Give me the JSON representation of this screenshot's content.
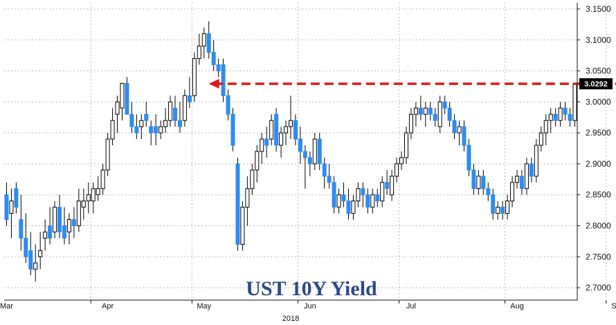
{
  "chart_data": {
    "type": "candlestick",
    "title": "UST 10Y Yield",
    "year_label": "2018",
    "last_value_label": "3.0292",
    "ylim": [
      2.68,
      3.16
    ],
    "y_ticks": [
      "3.1500",
      "3.1000",
      "3.0500",
      "3.0000",
      "2.9500",
      "2.9000",
      "2.8500",
      "2.8000",
      "2.7500",
      "2.7000"
    ],
    "y_tick_values": [
      3.15,
      3.1,
      3.05,
      3.0,
      2.95,
      2.9,
      2.85,
      2.8,
      2.75,
      2.7
    ],
    "x_ticks": [
      "Mar",
      "Apr",
      "May",
      "Jun",
      "Jul",
      "Aug",
      "Sep"
    ],
    "x_tick_index": [
      0,
      21,
      41,
      63,
      84,
      106,
      127
    ],
    "month_boundaries": [
      18,
      39,
      61,
      82,
      104,
      125
    ],
    "grid": true,
    "annotation": {
      "type": "dashed-arrow",
      "level": 3.0292,
      "from_index": 134,
      "to_index": 42,
      "color": "#e0191b"
    },
    "colors": {
      "up": "#ffffff",
      "down": "#2d8cf0",
      "outline": "#000000",
      "grid": "#b8b8b8",
      "axis": "#111111",
      "badge": "#000000"
    },
    "candles": [
      {
        "o": 2.85,
        "h": 2.87,
        "l": 2.8,
        "c": 2.81
      },
      {
        "o": 2.82,
        "h": 2.86,
        "l": 2.78,
        "c": 2.84
      },
      {
        "o": 2.86,
        "h": 2.87,
        "l": 2.82,
        "c": 2.83
      },
      {
        "o": 2.81,
        "h": 2.85,
        "l": 2.76,
        "c": 2.78
      },
      {
        "o": 2.78,
        "h": 2.82,
        "l": 2.74,
        "c": 2.75
      },
      {
        "o": 2.76,
        "h": 2.79,
        "l": 2.72,
        "c": 2.73
      },
      {
        "o": 2.73,
        "h": 2.77,
        "l": 2.71,
        "c": 2.74
      },
      {
        "o": 2.75,
        "h": 2.79,
        "l": 2.73,
        "c": 2.76
      },
      {
        "o": 2.78,
        "h": 2.81,
        "l": 2.76,
        "c": 2.79
      },
      {
        "o": 2.8,
        "h": 2.83,
        "l": 2.77,
        "c": 2.78
      },
      {
        "o": 2.79,
        "h": 2.84,
        "l": 2.78,
        "c": 2.83
      },
      {
        "o": 2.83,
        "h": 2.85,
        "l": 2.78,
        "c": 2.79
      },
      {
        "o": 2.8,
        "h": 2.83,
        "l": 2.77,
        "c": 2.78
      },
      {
        "o": 2.79,
        "h": 2.82,
        "l": 2.77,
        "c": 2.81
      },
      {
        "o": 2.81,
        "h": 2.83,
        "l": 2.78,
        "c": 2.8
      },
      {
        "o": 2.8,
        "h": 2.86,
        "l": 2.79,
        "c": 2.84
      },
      {
        "o": 2.83,
        "h": 2.86,
        "l": 2.81,
        "c": 2.84
      },
      {
        "o": 2.84,
        "h": 2.87,
        "l": 2.82,
        "c": 2.85
      },
      {
        "o": 2.84,
        "h": 2.87,
        "l": 2.82,
        "c": 2.86
      },
      {
        "o": 2.85,
        "h": 2.88,
        "l": 2.84,
        "c": 2.86
      },
      {
        "o": 2.86,
        "h": 2.9,
        "l": 2.85,
        "c": 2.89
      },
      {
        "o": 2.89,
        "h": 2.95,
        "l": 2.88,
        "c": 2.94
      },
      {
        "o": 2.94,
        "h": 2.99,
        "l": 2.93,
        "c": 2.97
      },
      {
        "o": 2.98,
        "h": 3.01,
        "l": 2.95,
        "c": 3.0
      },
      {
        "o": 2.99,
        "h": 3.03,
        "l": 2.97,
        "c": 3.03
      },
      {
        "o": 3.03,
        "h": 3.04,
        "l": 2.98,
        "c": 2.98
      },
      {
        "o": 2.98,
        "h": 3.0,
        "l": 2.95,
        "c": 2.96
      },
      {
        "o": 2.96,
        "h": 2.98,
        "l": 2.94,
        "c": 2.95
      },
      {
        "o": 2.96,
        "h": 2.98,
        "l": 2.94,
        "c": 2.97
      },
      {
        "o": 2.98,
        "h": 3.0,
        "l": 2.96,
        "c": 2.97
      },
      {
        "o": 2.96,
        "h": 2.97,
        "l": 2.93,
        "c": 2.95
      },
      {
        "o": 2.96,
        "h": 2.98,
        "l": 2.93,
        "c": 2.95
      },
      {
        "o": 2.95,
        "h": 2.97,
        "l": 2.94,
        "c": 2.96
      },
      {
        "o": 2.96,
        "h": 2.99,
        "l": 2.95,
        "c": 2.97
      },
      {
        "o": 2.97,
        "h": 3.01,
        "l": 2.96,
        "c": 3.0
      },
      {
        "o": 2.99,
        "h": 3.01,
        "l": 2.96,
        "c": 2.97
      },
      {
        "o": 2.97,
        "h": 3.0,
        "l": 2.95,
        "c": 2.96
      },
      {
        "o": 2.97,
        "h": 3.02,
        "l": 2.96,
        "c": 3.01
      },
      {
        "o": 3.01,
        "h": 3.04,
        "l": 2.99,
        "c": 3.0
      },
      {
        "o": 3.01,
        "h": 3.08,
        "l": 3.0,
        "c": 3.07
      },
      {
        "o": 3.07,
        "h": 3.11,
        "l": 3.06,
        "c": 3.09
      },
      {
        "o": 3.09,
        "h": 3.12,
        "l": 3.07,
        "c": 3.11
      },
      {
        "o": 3.11,
        "h": 3.13,
        "l": 3.07,
        "c": 3.08
      },
      {
        "o": 3.08,
        "h": 3.1,
        "l": 3.05,
        "c": 3.06
      },
      {
        "o": 3.06,
        "h": 3.07,
        "l": 3.04,
        "c": 3.05
      },
      {
        "o": 3.06,
        "h": 3.07,
        "l": 3.0,
        "c": 3.01
      },
      {
        "o": 3.01,
        "h": 3.02,
        "l": 2.97,
        "c": 2.98
      },
      {
        "o": 2.98,
        "h": 2.99,
        "l": 2.92,
        "c": 2.93
      },
      {
        "o": 2.9,
        "h": 2.91,
        "l": 2.76,
        "c": 2.77
      },
      {
        "o": 2.77,
        "h": 2.84,
        "l": 2.76,
        "c": 2.83
      },
      {
        "o": 2.83,
        "h": 2.88,
        "l": 2.8,
        "c": 2.86
      },
      {
        "o": 2.86,
        "h": 2.9,
        "l": 2.85,
        "c": 2.89
      },
      {
        "o": 2.89,
        "h": 2.93,
        "l": 2.87,
        "c": 2.92
      },
      {
        "o": 2.92,
        "h": 2.95,
        "l": 2.9,
        "c": 2.94
      },
      {
        "o": 2.94,
        "h": 2.96,
        "l": 2.91,
        "c": 2.93
      },
      {
        "o": 2.94,
        "h": 2.98,
        "l": 2.93,
        "c": 2.97
      },
      {
        "o": 2.98,
        "h": 2.99,
        "l": 2.92,
        "c": 2.93
      },
      {
        "o": 2.93,
        "h": 2.96,
        "l": 2.91,
        "c": 2.95
      },
      {
        "o": 2.95,
        "h": 2.97,
        "l": 2.93,
        "c": 2.96
      },
      {
        "o": 2.96,
        "h": 3.01,
        "l": 2.94,
        "c": 2.97
      },
      {
        "o": 2.97,
        "h": 2.98,
        "l": 2.93,
        "c": 2.94
      },
      {
        "o": 2.94,
        "h": 2.96,
        "l": 2.9,
        "c": 2.92
      },
      {
        "o": 2.92,
        "h": 2.93,
        "l": 2.86,
        "c": 2.91
      },
      {
        "o": 2.91,
        "h": 2.92,
        "l": 2.88,
        "c": 2.9
      },
      {
        "o": 2.9,
        "h": 2.95,
        "l": 2.89,
        "c": 2.94
      },
      {
        "o": 2.94,
        "h": 2.95,
        "l": 2.89,
        "c": 2.9
      },
      {
        "o": 2.9,
        "h": 2.91,
        "l": 2.86,
        "c": 2.88
      },
      {
        "o": 2.88,
        "h": 2.9,
        "l": 2.86,
        "c": 2.87
      },
      {
        "o": 2.87,
        "h": 2.88,
        "l": 2.82,
        "c": 2.83
      },
      {
        "o": 2.83,
        "h": 2.86,
        "l": 2.82,
        "c": 2.85
      },
      {
        "o": 2.85,
        "h": 2.87,
        "l": 2.83,
        "c": 2.84
      },
      {
        "o": 2.84,
        "h": 2.86,
        "l": 2.81,
        "c": 2.82
      },
      {
        "o": 2.82,
        "h": 2.85,
        "l": 2.81,
        "c": 2.84
      },
      {
        "o": 2.84,
        "h": 2.87,
        "l": 2.83,
        "c": 2.86
      },
      {
        "o": 2.86,
        "h": 2.87,
        "l": 2.83,
        "c": 2.85
      },
      {
        "o": 2.85,
        "h": 2.86,
        "l": 2.82,
        "c": 2.83
      },
      {
        "o": 2.83,
        "h": 2.86,
        "l": 2.82,
        "c": 2.85
      },
      {
        "o": 2.85,
        "h": 2.86,
        "l": 2.83,
        "c": 2.84
      },
      {
        "o": 2.84,
        "h": 2.88,
        "l": 2.83,
        "c": 2.87
      },
      {
        "o": 2.87,
        "h": 2.89,
        "l": 2.85,
        "c": 2.86
      },
      {
        "o": 2.85,
        "h": 2.89,
        "l": 2.84,
        "c": 2.88
      },
      {
        "o": 2.88,
        "h": 2.91,
        "l": 2.87,
        "c": 2.9
      },
      {
        "o": 2.9,
        "h": 2.92,
        "l": 2.89,
        "c": 2.91
      },
      {
        "o": 2.91,
        "h": 2.96,
        "l": 2.9,
        "c": 2.95
      },
      {
        "o": 2.95,
        "h": 2.99,
        "l": 2.94,
        "c": 2.98
      },
      {
        "o": 2.98,
        "h": 3.0,
        "l": 2.96,
        "c": 2.99
      },
      {
        "o": 2.99,
        "h": 3.01,
        "l": 2.97,
        "c": 2.98
      },
      {
        "o": 2.98,
        "h": 3.0,
        "l": 2.96,
        "c": 2.99
      },
      {
        "o": 2.99,
        "h": 3.0,
        "l": 2.97,
        "c": 2.98
      },
      {
        "o": 2.98,
        "h": 2.99,
        "l": 2.96,
        "c": 2.97
      },
      {
        "o": 2.96,
        "h": 3.01,
        "l": 2.95,
        "c": 3.0
      },
      {
        "o": 3.0,
        "h": 3.01,
        "l": 2.98,
        "c": 2.99
      },
      {
        "o": 2.99,
        "h": 3.0,
        "l": 2.96,
        "c": 2.97
      },
      {
        "o": 2.97,
        "h": 2.98,
        "l": 2.94,
        "c": 2.95
      },
      {
        "o": 2.95,
        "h": 2.97,
        "l": 2.93,
        "c": 2.96
      },
      {
        "o": 2.96,
        "h": 2.97,
        "l": 2.92,
        "c": 2.93
      },
      {
        "o": 2.93,
        "h": 2.94,
        "l": 2.88,
        "c": 2.89
      },
      {
        "o": 2.89,
        "h": 2.9,
        "l": 2.85,
        "c": 2.86
      },
      {
        "o": 2.86,
        "h": 2.89,
        "l": 2.85,
        "c": 2.88
      },
      {
        "o": 2.88,
        "h": 2.89,
        "l": 2.85,
        "c": 2.86
      },
      {
        "o": 2.86,
        "h": 2.87,
        "l": 2.84,
        "c": 2.85
      },
      {
        "o": 2.85,
        "h": 2.86,
        "l": 2.81,
        "c": 2.82
      },
      {
        "o": 2.82,
        "h": 2.84,
        "l": 2.81,
        "c": 2.83
      },
      {
        "o": 2.83,
        "h": 2.84,
        "l": 2.81,
        "c": 2.82
      },
      {
        "o": 2.82,
        "h": 2.85,
        "l": 2.81,
        "c": 2.84
      },
      {
        "o": 2.84,
        "h": 2.88,
        "l": 2.83,
        "c": 2.87
      },
      {
        "o": 2.87,
        "h": 2.89,
        "l": 2.86,
        "c": 2.88
      },
      {
        "o": 2.88,
        "h": 2.89,
        "l": 2.85,
        "c": 2.86
      },
      {
        "o": 2.86,
        "h": 2.91,
        "l": 2.85,
        "c": 2.9
      },
      {
        "o": 2.9,
        "h": 2.91,
        "l": 2.87,
        "c": 2.88
      },
      {
        "o": 2.88,
        "h": 2.94,
        "l": 2.87,
        "c": 2.93
      },
      {
        "o": 2.93,
        "h": 2.96,
        "l": 2.92,
        "c": 2.95
      },
      {
        "o": 2.95,
        "h": 2.98,
        "l": 2.93,
        "c": 2.97
      },
      {
        "o": 2.97,
        "h": 2.99,
        "l": 2.95,
        "c": 2.98
      },
      {
        "o": 2.98,
        "h": 2.99,
        "l": 2.96,
        "c": 2.97
      },
      {
        "o": 2.97,
        "h": 3.0,
        "l": 2.96,
        "c": 2.99
      },
      {
        "o": 2.99,
        "h": 3.0,
        "l": 2.97,
        "c": 2.98
      },
      {
        "o": 2.98,
        "h": 2.99,
        "l": 2.96,
        "c": 2.97
      },
      {
        "o": 2.97,
        "h": 3.03,
        "l": 2.96,
        "c": 3.03
      }
    ]
  }
}
